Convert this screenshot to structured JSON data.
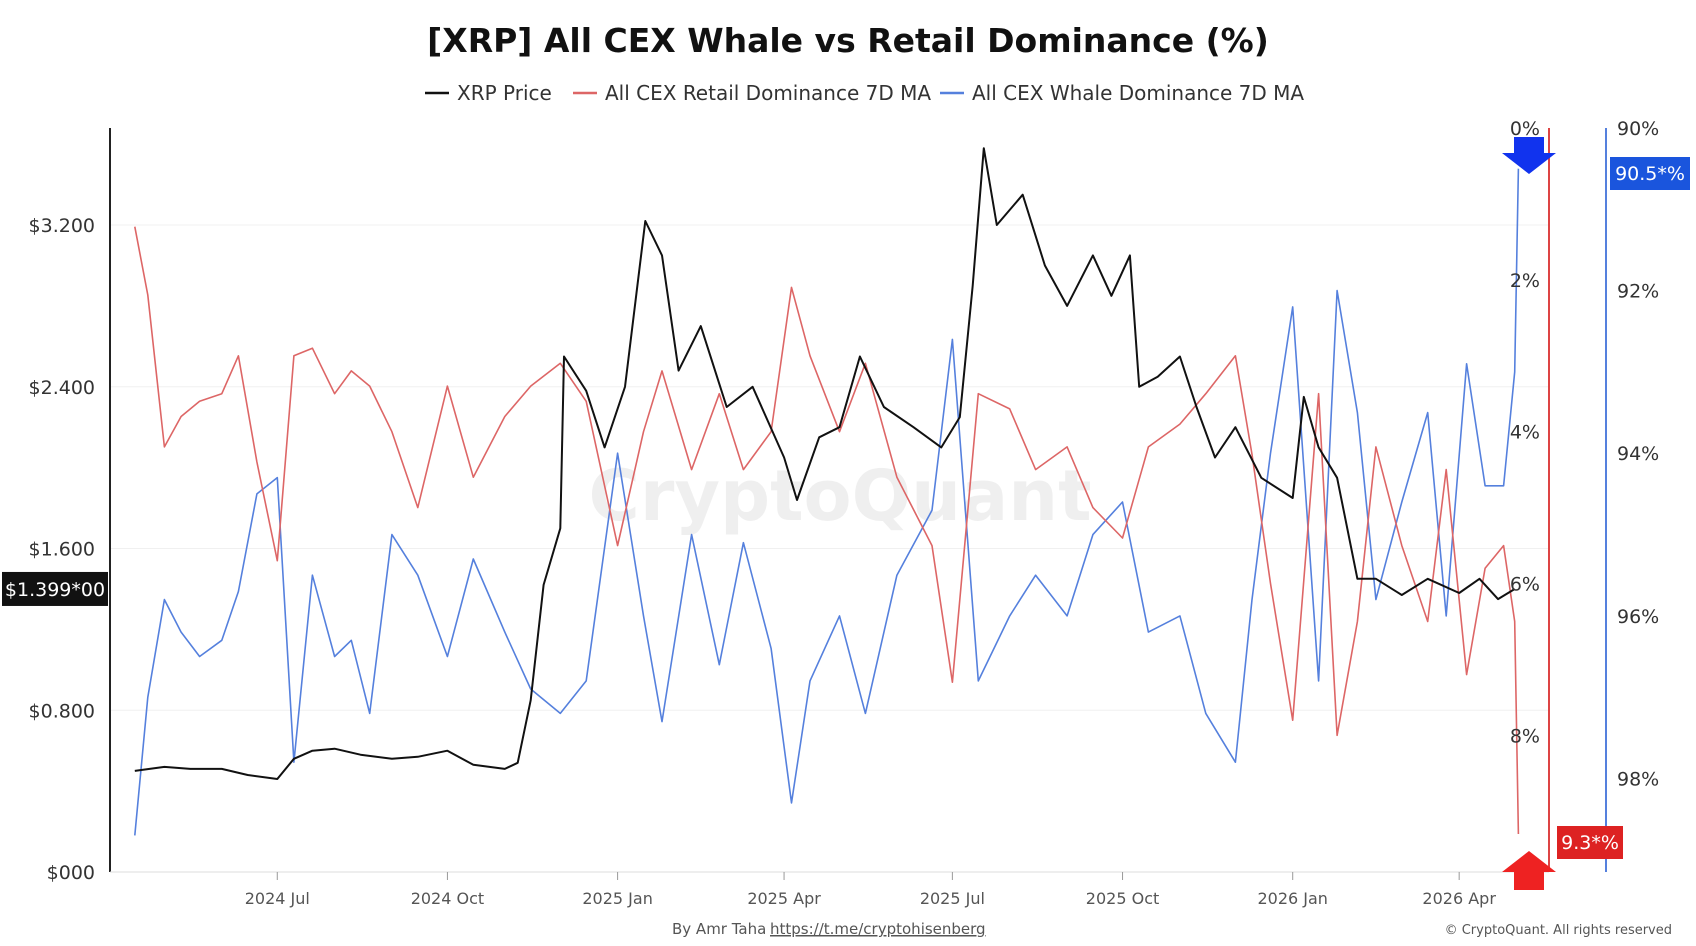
{
  "chart_data": {
    "type": "line",
    "title": "[XRP] All CEX Whale vs Retail Dominance (%)",
    "watermark": "CryptoQuant",
    "footer_author": "By Amr Taha",
    "footer_link": "https://t.me/cryptohisenberg",
    "copyright": "© CryptoQuant. All rights reserved",
    "legend_position": "top-center",
    "grid": true,
    "x_range": [
      "2024-04-14",
      "2026-05-12"
    ],
    "x_ticks": [
      {
        "date": "2024-07-01",
        "label": "2024 Jul"
      },
      {
        "date": "2024-10-01",
        "label": "2024 Oct"
      },
      {
        "date": "2025-01-01",
        "label": "2025 Jan"
      },
      {
        "date": "2025-04-01",
        "label": "2025 Apr"
      },
      {
        "date": "2025-07-01",
        "label": "2025 Jul"
      },
      {
        "date": "2025-10-01",
        "label": "2025 Oct"
      },
      {
        "date": "2026-01-01",
        "label": "2026 Jan"
      },
      {
        "date": "2026-04-01",
        "label": "2026 Apr"
      }
    ],
    "axes": {
      "price": {
        "range": [
          0,
          3.68
        ],
        "ticks": [
          {
            "v": 0,
            "label": "$000"
          },
          {
            "v": 0.8,
            "label": "$0.800"
          },
          {
            "v": 1.6,
            "label": "$1.600"
          },
          {
            "v": 2.4,
            "label": "$2.400"
          },
          {
            "v": 3.2,
            "label": "$3.200"
          }
        ]
      },
      "retail": {
        "range": [
          0,
          9.8
        ],
        "inverted": true,
        "ticks": [
          {
            "v": 0,
            "label": "0%"
          },
          {
            "v": 2,
            "label": "2%"
          },
          {
            "v": 4,
            "label": "4%"
          },
          {
            "v": 6,
            "label": "6%"
          },
          {
            "v": 8,
            "label": "8%"
          }
        ]
      },
      "whale": {
        "range": [
          90,
          99.15
        ],
        "inverted": true,
        "ticks": [
          {
            "v": 90,
            "label": "90%"
          },
          {
            "v": 92,
            "label": "92%"
          },
          {
            "v": 94,
            "label": "94%"
          },
          {
            "v": 96,
            "label": "96%"
          },
          {
            "v": 98,
            "label": "98%"
          }
        ]
      }
    },
    "badges": {
      "price": "$1.399*00",
      "retail": "9.3*%",
      "whale": "90.5*%"
    },
    "series": [
      {
        "name": "XRP Price",
        "axis": "price",
        "color": "#111111",
        "points": [
          [
            "2024-04-15",
            0.5
          ],
          [
            "2024-05-01",
            0.52
          ],
          [
            "2024-05-15",
            0.51
          ],
          [
            "2024-06-01",
            0.51
          ],
          [
            "2024-06-15",
            0.48
          ],
          [
            "2024-07-01",
            0.46
          ],
          [
            "2024-07-10",
            0.56
          ],
          [
            "2024-07-20",
            0.6
          ],
          [
            "2024-08-01",
            0.61
          ],
          [
            "2024-08-15",
            0.58
          ],
          [
            "2024-09-01",
            0.56
          ],
          [
            "2024-09-15",
            0.57
          ],
          [
            "2024-10-01",
            0.6
          ],
          [
            "2024-10-15",
            0.53
          ],
          [
            "2024-11-01",
            0.51
          ],
          [
            "2024-11-08",
            0.54
          ],
          [
            "2024-11-15",
            0.85
          ],
          [
            "2024-11-22",
            1.42
          ],
          [
            "2024-12-01",
            1.7
          ],
          [
            "2024-12-03",
            2.55
          ],
          [
            "2024-12-15",
            2.38
          ],
          [
            "2024-12-25",
            2.1
          ],
          [
            "2025-01-05",
            2.4
          ],
          [
            "2025-01-16",
            3.22
          ],
          [
            "2025-01-25",
            3.05
          ],
          [
            "2025-02-03",
            2.48
          ],
          [
            "2025-02-15",
            2.7
          ],
          [
            "2025-03-01",
            2.3
          ],
          [
            "2025-03-15",
            2.4
          ],
          [
            "2025-04-01",
            2.05
          ],
          [
            "2025-04-08",
            1.84
          ],
          [
            "2025-04-20",
            2.15
          ],
          [
            "2025-05-01",
            2.2
          ],
          [
            "2025-05-12",
            2.55
          ],
          [
            "2025-05-25",
            2.3
          ],
          [
            "2025-06-10",
            2.2
          ],
          [
            "2025-06-25",
            2.1
          ],
          [
            "2025-07-05",
            2.25
          ],
          [
            "2025-07-12",
            2.9
          ],
          [
            "2025-07-18",
            3.58
          ],
          [
            "2025-07-25",
            3.2
          ],
          [
            "2025-08-08",
            3.35
          ],
          [
            "2025-08-20",
            3.0
          ],
          [
            "2025-09-01",
            2.8
          ],
          [
            "2025-09-15",
            3.05
          ],
          [
            "2025-09-25",
            2.85
          ],
          [
            "2025-10-05",
            3.05
          ],
          [
            "2025-10-10",
            2.4
          ],
          [
            "2025-10-20",
            2.45
          ],
          [
            "2025-11-01",
            2.55
          ],
          [
            "2025-11-10",
            2.3
          ],
          [
            "2025-11-20",
            2.05
          ],
          [
            "2025-12-01",
            2.2
          ],
          [
            "2025-12-15",
            1.95
          ],
          [
            "2026-01-01",
            1.85
          ],
          [
            "2026-01-07",
            2.35
          ],
          [
            "2026-01-15",
            2.1
          ],
          [
            "2026-01-25",
            1.95
          ],
          [
            "2026-02-05",
            1.45
          ],
          [
            "2026-02-15",
            1.45
          ],
          [
            "2026-03-01",
            1.37
          ],
          [
            "2026-03-15",
            1.45
          ],
          [
            "2026-04-01",
            1.38
          ],
          [
            "2026-04-12",
            1.45
          ],
          [
            "2026-04-22",
            1.35
          ],
          [
            "2026-05-01",
            1.4
          ]
        ]
      },
      {
        "name": "All CEX Retail Dominance 7D MA",
        "axis": "retail",
        "color": "#dd6666",
        "points": [
          [
            "2024-04-15",
            1.3
          ],
          [
            "2024-04-22",
            2.2
          ],
          [
            "2024-05-01",
            4.2
          ],
          [
            "2024-05-10",
            3.8
          ],
          [
            "2024-05-20",
            3.6
          ],
          [
            "2024-06-01",
            3.5
          ],
          [
            "2024-06-10",
            3.0
          ],
          [
            "2024-06-20",
            4.4
          ],
          [
            "2024-07-01",
            5.7
          ],
          [
            "2024-07-10",
            3.0
          ],
          [
            "2024-07-20",
            2.9
          ],
          [
            "2024-08-01",
            3.5
          ],
          [
            "2024-08-10",
            3.2
          ],
          [
            "2024-08-20",
            3.4
          ],
          [
            "2024-09-01",
            4.0
          ],
          [
            "2024-09-15",
            5.0
          ],
          [
            "2024-10-01",
            3.4
          ],
          [
            "2024-10-15",
            4.6
          ],
          [
            "2024-11-01",
            3.8
          ],
          [
            "2024-11-15",
            3.4
          ],
          [
            "2024-12-01",
            3.1
          ],
          [
            "2024-12-15",
            3.6
          ],
          [
            "2025-01-01",
            5.5
          ],
          [
            "2025-01-15",
            4.0
          ],
          [
            "2025-01-25",
            3.2
          ],
          [
            "2025-02-10",
            4.5
          ],
          [
            "2025-02-25",
            3.5
          ],
          [
            "2025-03-10",
            4.5
          ],
          [
            "2025-03-25",
            4.0
          ],
          [
            "2025-04-05",
            2.1
          ],
          [
            "2025-04-15",
            3.0
          ],
          [
            "2025-05-01",
            4.0
          ],
          [
            "2025-05-15",
            3.1
          ],
          [
            "2025-06-01",
            4.6
          ],
          [
            "2025-06-20",
            5.5
          ],
          [
            "2025-07-01",
            7.3
          ],
          [
            "2025-07-15",
            3.5
          ],
          [
            "2025-08-01",
            3.7
          ],
          [
            "2025-08-15",
            4.5
          ],
          [
            "2025-09-01",
            4.2
          ],
          [
            "2025-09-15",
            5.0
          ],
          [
            "2025-10-01",
            5.4
          ],
          [
            "2025-10-15",
            4.2
          ],
          [
            "2025-11-01",
            3.9
          ],
          [
            "2025-11-15",
            3.5
          ],
          [
            "2025-12-01",
            3.0
          ],
          [
            "2025-12-10",
            4.3
          ],
          [
            "2025-12-20",
            6.0
          ],
          [
            "2026-01-01",
            7.8
          ],
          [
            "2026-01-15",
            3.5
          ],
          [
            "2026-01-25",
            8.0
          ],
          [
            "2026-02-05",
            6.5
          ],
          [
            "2026-02-15",
            4.2
          ],
          [
            "2026-03-01",
            5.5
          ],
          [
            "2026-03-15",
            6.5
          ],
          [
            "2026-03-25",
            4.5
          ],
          [
            "2026-04-05",
            7.2
          ],
          [
            "2026-04-15",
            5.8
          ],
          [
            "2026-04-25",
            5.5
          ],
          [
            "2026-05-01",
            6.5
          ],
          [
            "2026-05-03",
            9.3
          ]
        ]
      },
      {
        "name": "All CEX Whale Dominance 7D MA",
        "axis": "whale",
        "color": "#5580dd",
        "points": [
          [
            "2024-04-15",
            98.7
          ],
          [
            "2024-04-22",
            97.0
          ],
          [
            "2024-05-01",
            95.8
          ],
          [
            "2024-05-10",
            96.2
          ],
          [
            "2024-05-20",
            96.5
          ],
          [
            "2024-06-01",
            96.3
          ],
          [
            "2024-06-10",
            95.7
          ],
          [
            "2024-06-20",
            94.5
          ],
          [
            "2024-07-01",
            94.3
          ],
          [
            "2024-07-10",
            97.8
          ],
          [
            "2024-07-20",
            95.5
          ],
          [
            "2024-08-01",
            96.5
          ],
          [
            "2024-08-10",
            96.3
          ],
          [
            "2024-08-20",
            97.2
          ],
          [
            "2024-09-01",
            95.0
          ],
          [
            "2024-09-15",
            95.5
          ],
          [
            "2024-10-01",
            96.5
          ],
          [
            "2024-10-15",
            95.3
          ],
          [
            "2024-11-01",
            96.2
          ],
          [
            "2024-11-15",
            96.9
          ],
          [
            "2024-12-01",
            97.2
          ],
          [
            "2024-12-15",
            96.8
          ],
          [
            "2025-01-01",
            94.0
          ],
          [
            "2025-01-15",
            96.0
          ],
          [
            "2025-01-25",
            97.3
          ],
          [
            "2025-02-10",
            95.0
          ],
          [
            "2025-02-25",
            96.6
          ],
          [
            "2025-03-10",
            95.1
          ],
          [
            "2025-03-25",
            96.4
          ],
          [
            "2025-04-05",
            98.3
          ],
          [
            "2025-04-15",
            96.8
          ],
          [
            "2025-05-01",
            96.0
          ],
          [
            "2025-05-15",
            97.2
          ],
          [
            "2025-06-01",
            95.5
          ],
          [
            "2025-06-20",
            94.7
          ],
          [
            "2025-07-01",
            92.6
          ],
          [
            "2025-07-15",
            96.8
          ],
          [
            "2025-08-01",
            96.0
          ],
          [
            "2025-08-15",
            95.5
          ],
          [
            "2025-09-01",
            96.0
          ],
          [
            "2025-09-15",
            95.0
          ],
          [
            "2025-10-01",
            94.6
          ],
          [
            "2025-10-15",
            96.2
          ],
          [
            "2025-11-01",
            96.0
          ],
          [
            "2025-11-15",
            97.2
          ],
          [
            "2025-12-01",
            97.8
          ],
          [
            "2025-12-10",
            95.8
          ],
          [
            "2025-12-20",
            94.0
          ],
          [
            "2026-01-01",
            92.2
          ],
          [
            "2026-01-15",
            96.8
          ],
          [
            "2026-01-25",
            92.0
          ],
          [
            "2026-02-05",
            93.5
          ],
          [
            "2026-02-15",
            95.8
          ],
          [
            "2026-03-01",
            94.6
          ],
          [
            "2026-03-15",
            93.5
          ],
          [
            "2026-03-25",
            96.0
          ],
          [
            "2026-04-05",
            92.9
          ],
          [
            "2026-04-15",
            94.4
          ],
          [
            "2026-04-25",
            94.4
          ],
          [
            "2026-05-01",
            93.0
          ],
          [
            "2026-05-03",
            90.5
          ]
        ]
      }
    ]
  }
}
